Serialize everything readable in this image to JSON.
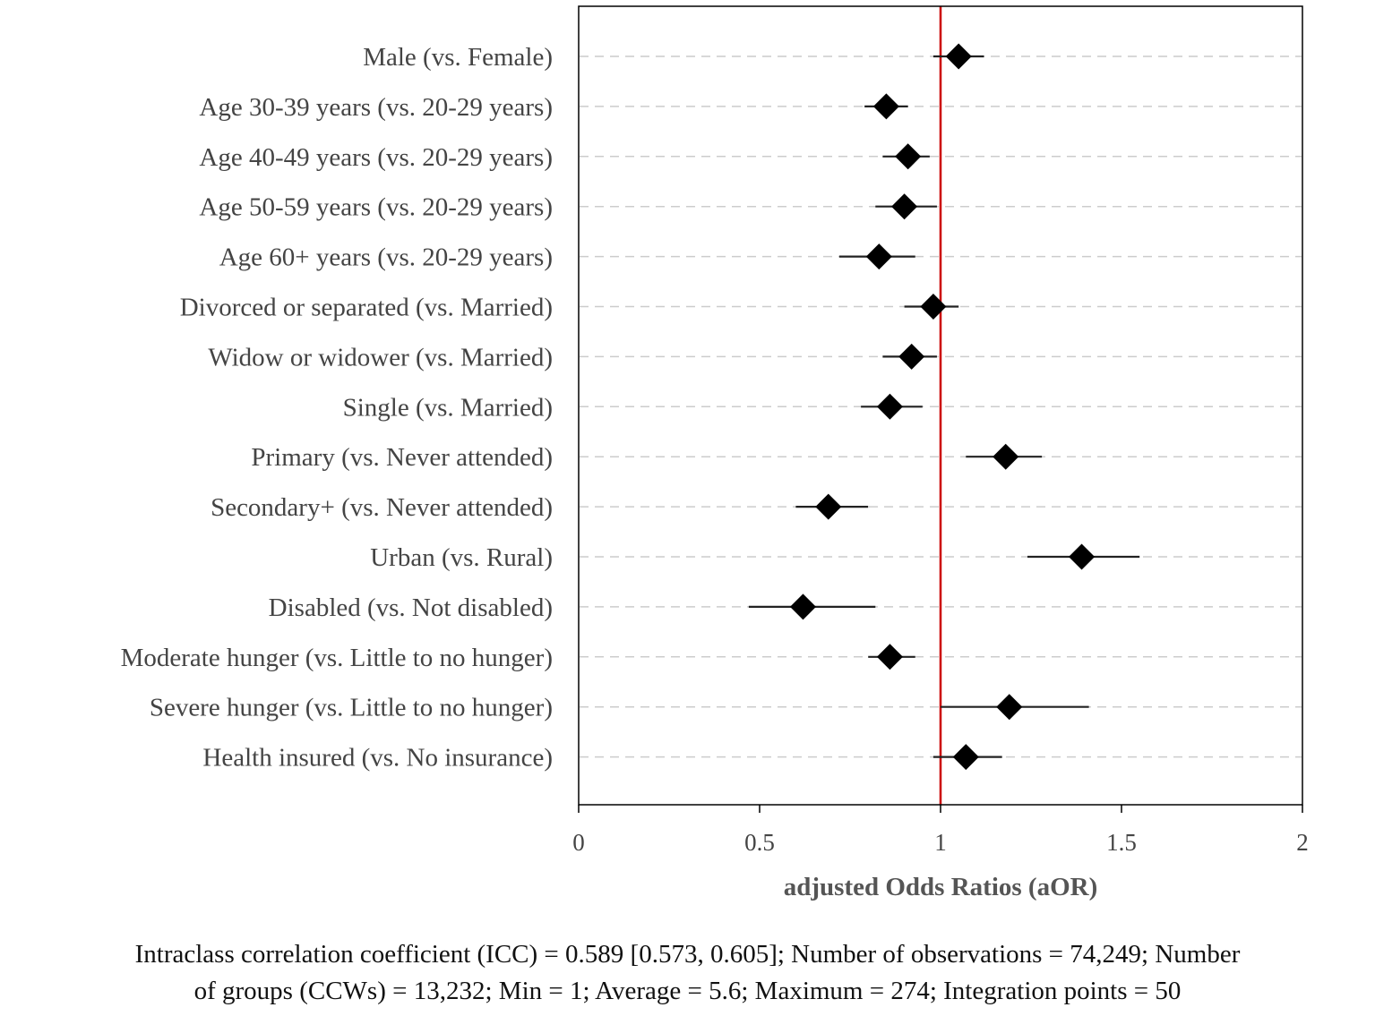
{
  "chart_data": {
    "type": "forest",
    "xlabel": "adjusted Odds Ratios (aOR)",
    "xlim": [
      0,
      2
    ],
    "xticks": [
      0,
      0.5,
      1,
      1.5,
      2
    ],
    "xtick_labels": [
      "0",
      "0.5",
      "1",
      "1.5",
      "2"
    ],
    "reference_line": 1,
    "grid": "horizontal dashed",
    "marker": "diamond",
    "colors": {
      "reference_line": "#cc0000",
      "marker": "#000000",
      "grid": "#cccccc",
      "frame": "#000000"
    },
    "rows": [
      {
        "label": "Male (vs. Female)",
        "aor": 1.05,
        "lo": 0.98,
        "hi": 1.12
      },
      {
        "label": "Age 30-39 years (vs. 20-29 years)",
        "aor": 0.85,
        "lo": 0.79,
        "hi": 0.91
      },
      {
        "label": "Age 40-49 years (vs. 20-29 years)",
        "aor": 0.91,
        "lo": 0.84,
        "hi": 0.97
      },
      {
        "label": "Age 50-59 years (vs. 20-29 years)",
        "aor": 0.9,
        "lo": 0.82,
        "hi": 0.99
      },
      {
        "label": "Age 60+ years (vs. 20-29 years)",
        "aor": 0.83,
        "lo": 0.72,
        "hi": 0.93
      },
      {
        "label": "Divorced or separated (vs. Married)",
        "aor": 0.98,
        "lo": 0.9,
        "hi": 1.05
      },
      {
        "label": "Widow or widower (vs. Married)",
        "aor": 0.92,
        "lo": 0.84,
        "hi": 0.99
      },
      {
        "label": "Single (vs. Married)",
        "aor": 0.86,
        "lo": 0.78,
        "hi": 0.95
      },
      {
        "label": "Primary (vs. Never attended)",
        "aor": 1.18,
        "lo": 1.07,
        "hi": 1.28
      },
      {
        "label": "Secondary+  (vs. Never attended)",
        "aor": 0.69,
        "lo": 0.6,
        "hi": 0.8
      },
      {
        "label": "Urban (vs. Rural)",
        "aor": 1.39,
        "lo": 1.24,
        "hi": 1.55
      },
      {
        "label": "Disabled (vs. Not disabled)",
        "aor": 0.62,
        "lo": 0.47,
        "hi": 0.82
      },
      {
        "label": "Moderate hunger (vs. Little to no hunger)",
        "aor": 0.86,
        "lo": 0.8,
        "hi": 0.93
      },
      {
        "label": "Severe hunger (vs. Little to no hunger)",
        "aor": 1.19,
        "lo": 1.0,
        "hi": 1.41
      },
      {
        "label": "Health insured (vs. No insurance)",
        "aor": 1.07,
        "lo": 0.98,
        "hi": 1.17
      }
    ]
  },
  "footnote": {
    "line1": "Intraclass correlation coefficient (ICC) = 0.589 [0.573, 0.605]; Number of observations = 74,249; Number",
    "line2": "of groups (CCWs) = 13,232; Min = 1; Average = 5.6; Maximum = 274; Integration points = 50"
  }
}
